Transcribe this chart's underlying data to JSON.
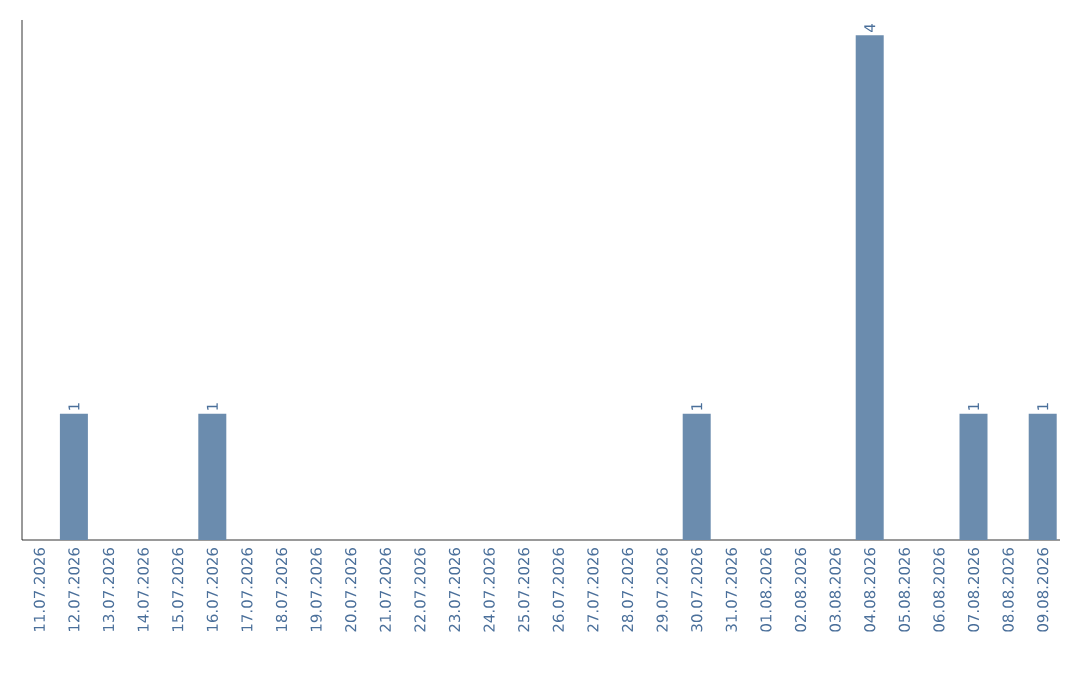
{
  "chart_data": {
    "type": "bar",
    "categories": [
      "11.07.2026",
      "12.07.2026",
      "13.07.2026",
      "14.07.2026",
      "15.07.2026",
      "16.07.2026",
      "17.07.2026",
      "18.07.2026",
      "19.07.2026",
      "20.07.2026",
      "21.07.2026",
      "22.07.2026",
      "23.07.2026",
      "24.07.2026",
      "25.07.2026",
      "26.07.2026",
      "27.07.2026",
      "28.07.2026",
      "29.07.2026",
      "30.07.2026",
      "31.07.2026",
      "01.08.2026",
      "02.08.2026",
      "03.08.2026",
      "04.08.2026",
      "05.08.2026",
      "06.08.2026",
      "07.08.2026",
      "08.08.2026",
      "09.08.2026"
    ],
    "values": [
      0,
      1,
      0,
      0,
      0,
      1,
      0,
      0,
      0,
      0,
      0,
      0,
      0,
      0,
      0,
      0,
      0,
      0,
      0,
      1,
      0,
      0,
      0,
      0,
      4,
      0,
      0,
      1,
      0,
      1
    ],
    "value_labels": [
      null,
      "1",
      null,
      null,
      null,
      "1",
      null,
      null,
      null,
      null,
      null,
      null,
      null,
      null,
      null,
      null,
      null,
      null,
      null,
      "1",
      null,
      null,
      null,
      null,
      "4",
      null,
      null,
      "1",
      null,
      "1"
    ],
    "color": "#6b8cae",
    "tick_labels": "x"
  }
}
